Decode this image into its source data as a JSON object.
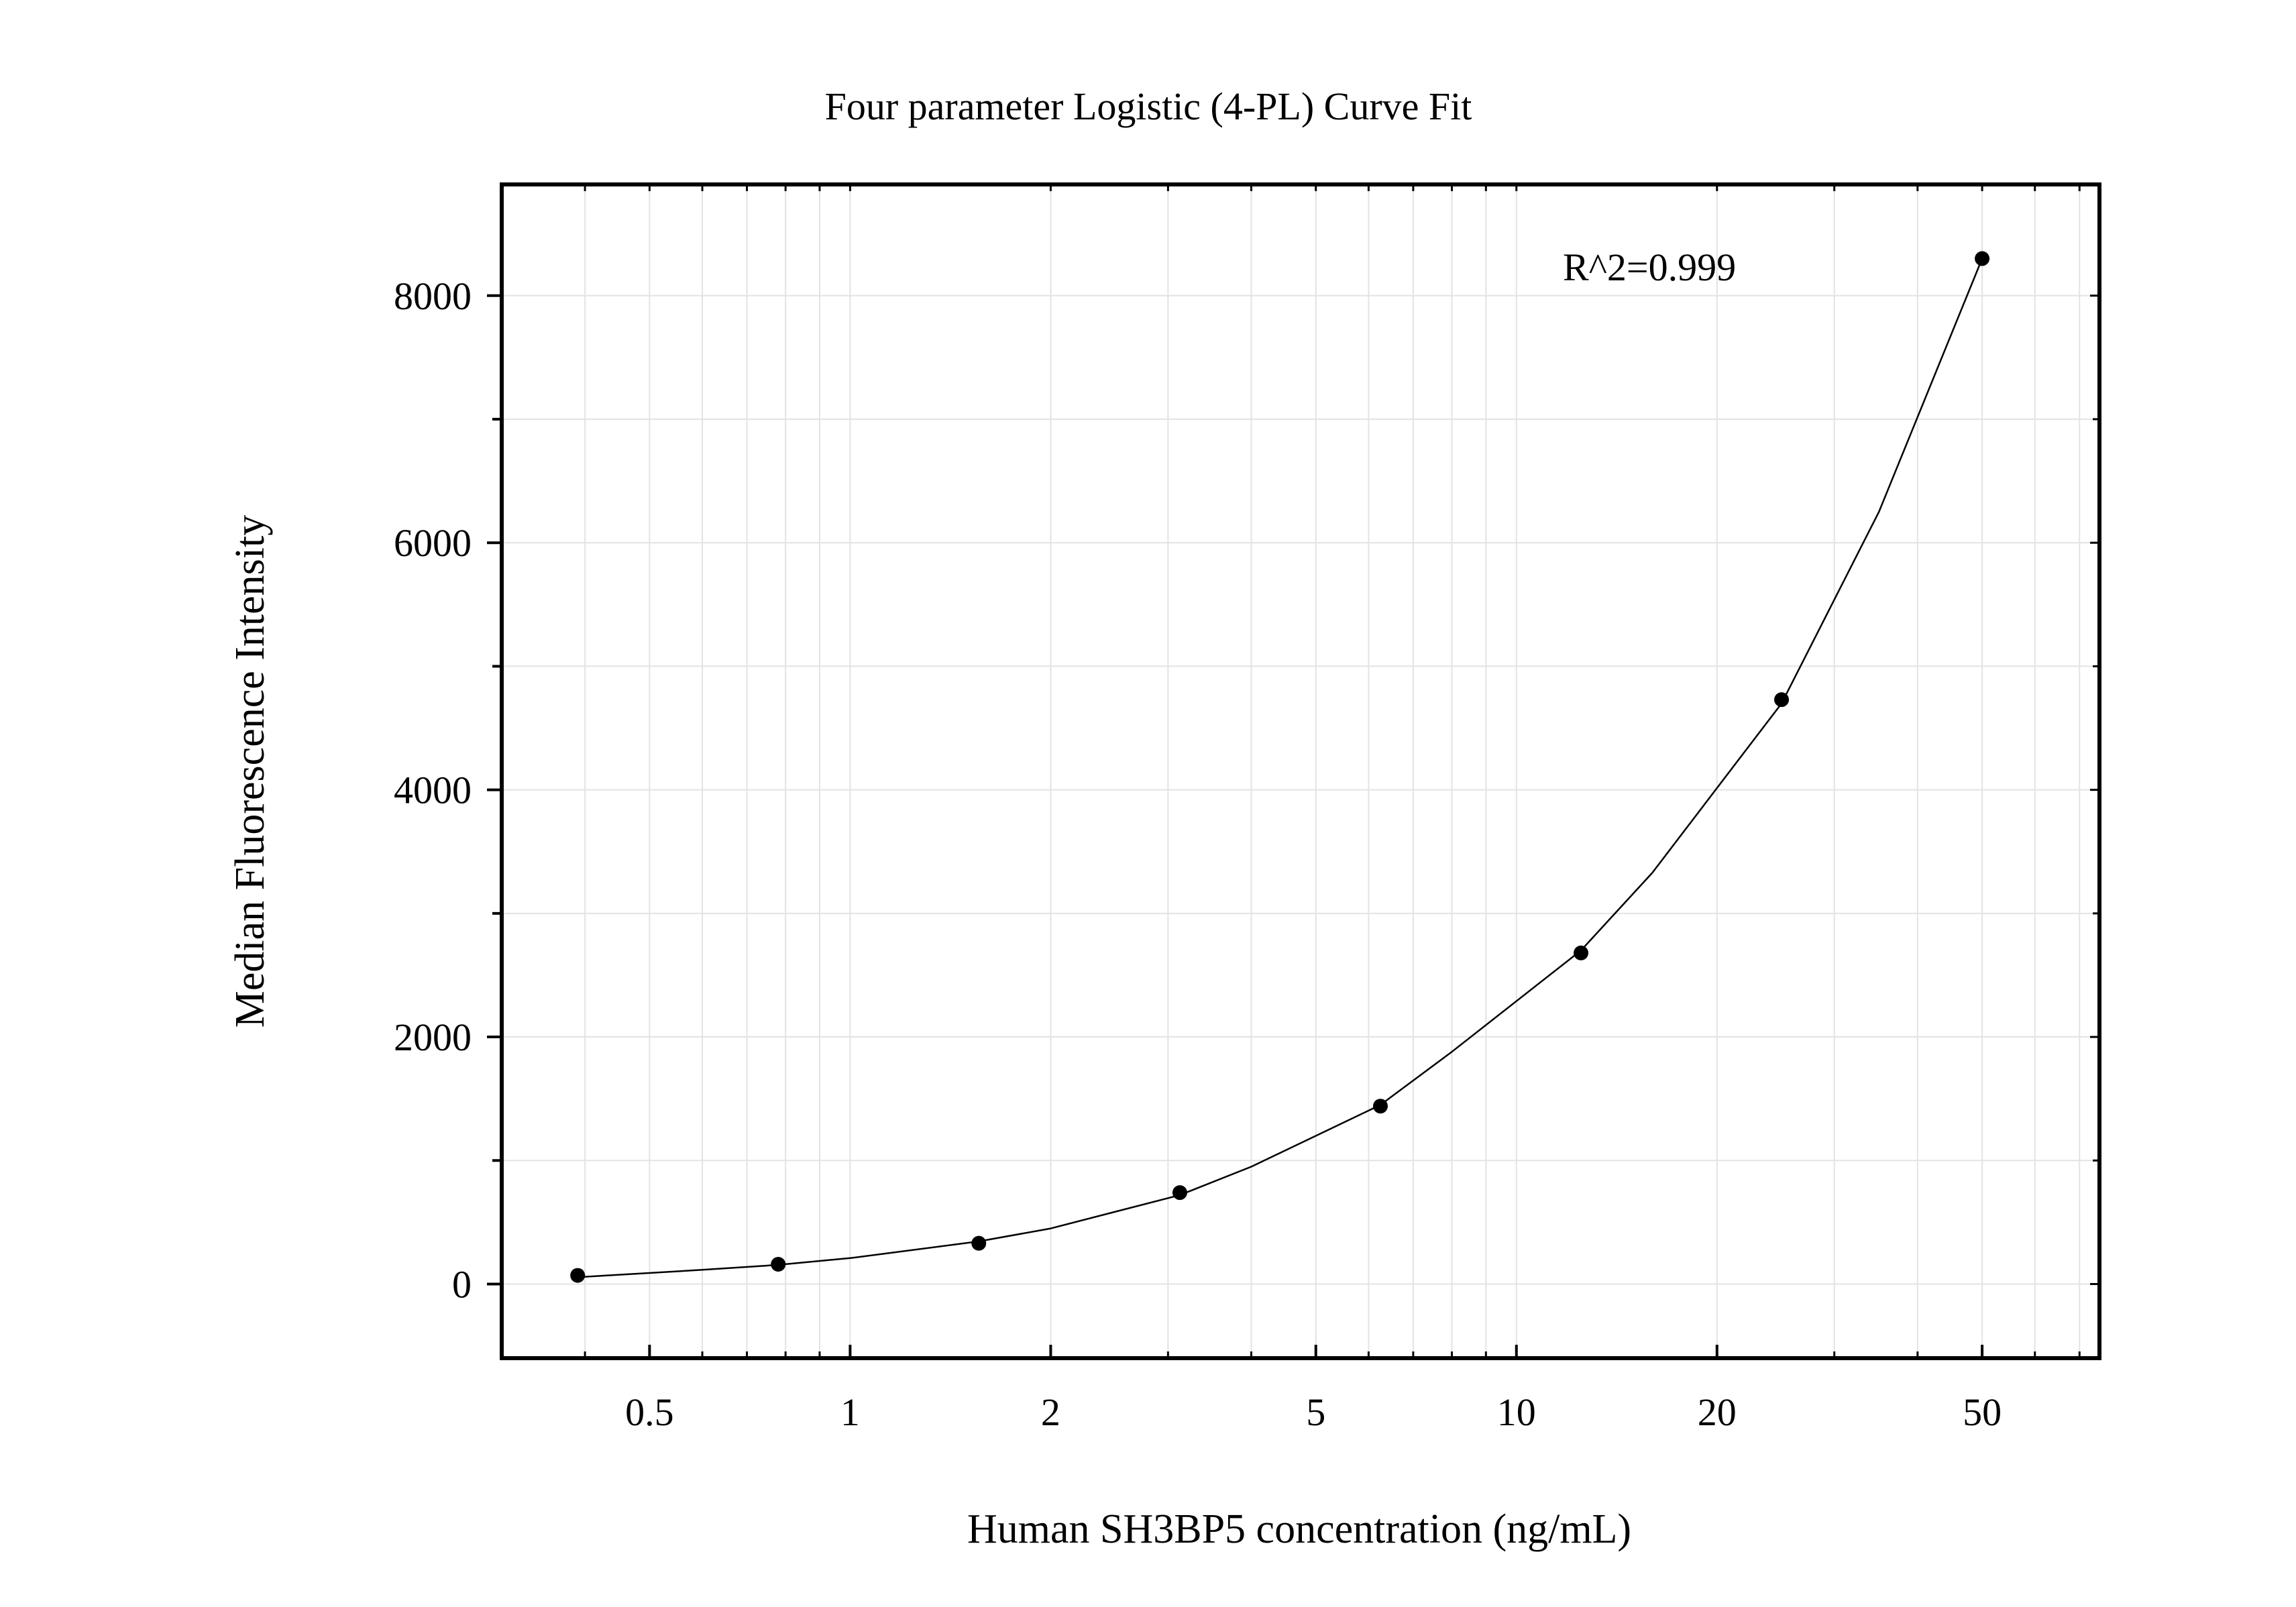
{
  "chart_data": {
    "type": "scatter",
    "title": "Four parameter Logistic (4-PL) Curve Fit",
    "xlabel": "Human SH3BP5 concentration (ng/mL)",
    "ylabel": "Median Fluorescence Intensity",
    "x_scale": "log",
    "xlim": [
      0.3,
      75
    ],
    "ylim": [
      -600,
      8900
    ],
    "grid": true,
    "x_ticks": [
      0.5,
      1,
      2,
      5,
      10,
      20,
      50
    ],
    "x_tick_labels": [
      "0.5",
      "1",
      "2",
      "5",
      "10",
      "20",
      "50"
    ],
    "y_ticks": [
      0,
      2000,
      4000,
      6000,
      8000
    ],
    "y_tick_labels": [
      "0",
      "2000",
      "4000",
      "6000",
      "8000"
    ],
    "annotation": "R^2=0.999",
    "series": [
      {
        "points": [
          {
            "x": 0.39,
            "y": 70
          },
          {
            "x": 0.78,
            "y": 160
          },
          {
            "x": 1.56,
            "y": 330
          },
          {
            "x": 3.125,
            "y": 740
          },
          {
            "x": 6.25,
            "y": 1440
          },
          {
            "x": 12.5,
            "y": 2680
          },
          {
            "x": 25,
            "y": 4730
          },
          {
            "x": 50,
            "y": 8300
          }
        ]
      }
    ],
    "fit_curve": {
      "model": "4PL",
      "x": [
        0.39,
        0.6,
        0.78,
        1,
        1.56,
        2,
        3.125,
        4,
        6.25,
        8,
        12.5,
        16,
        25,
        35,
        50
      ],
      "y": [
        55,
        115,
        155,
        210,
        345,
        450,
        720,
        950,
        1450,
        1880,
        2700,
        3330,
        4700,
        6250,
        8300
      ]
    }
  }
}
